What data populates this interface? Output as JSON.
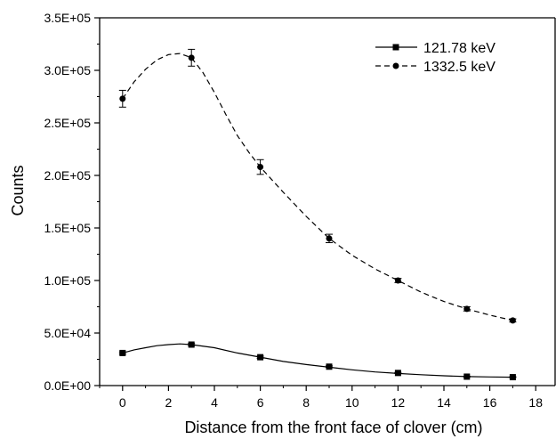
{
  "chart_data": {
    "type": "line",
    "xlabel": "Distance from the front face of clover (cm)",
    "ylabel": "Counts",
    "xlim": [
      -1,
      19
    ],
    "ylim": [
      0,
      350000
    ],
    "x_ticks": [
      0,
      2,
      4,
      6,
      8,
      10,
      12,
      14,
      16,
      18
    ],
    "x_tick_labels": [
      "0",
      "2",
      "4",
      "6",
      "8",
      "10",
      "12",
      "14",
      "16",
      "18"
    ],
    "y_ticks": [
      0,
      50000,
      100000,
      150000,
      200000,
      250000,
      300000,
      350000
    ],
    "y_tick_labels": [
      "0.0E+00",
      "5.0E+04",
      "1.0E+05",
      "1.5E+05",
      "2.0E+05",
      "2.5E+05",
      "3.0E+05",
      "3.5E+05"
    ],
    "legend_position": "top-right",
    "grid": false,
    "series": [
      {
        "name": "121.78 keV",
        "marker": "square",
        "line_style": "solid",
        "color": "#000000",
        "x": [
          0,
          3,
          6,
          9,
          12,
          15,
          17
        ],
        "y": [
          31000,
          39000,
          27000,
          18000,
          12000,
          8500,
          8000
        ],
        "error": [
          1000,
          1000,
          1000,
          700,
          500,
          400,
          400
        ],
        "curve": {
          "x": [
            0,
            0.5,
            1,
            1.5,
            2,
            2.5,
            3,
            4,
            5,
            6,
            7,
            8,
            9,
            10,
            11,
            12,
            13,
            14,
            15,
            16,
            17
          ],
          "y": [
            31000,
            34000,
            36000,
            38000,
            39000,
            39700,
            39000,
            36000,
            31000,
            27000,
            23000,
            20000,
            17500,
            15000,
            13000,
            11500,
            10300,
            9300,
            8600,
            8200,
            8000
          ]
        }
      },
      {
        "name": "1332.5 keV",
        "marker": "circle",
        "line_style": "dashed",
        "color": "#000000",
        "x": [
          0,
          3,
          6,
          9,
          12,
          15,
          17
        ],
        "y": [
          273000,
          312000,
          208000,
          140000,
          100000,
          73000,
          62000
        ],
        "error": [
          8000,
          8000,
          7000,
          4000,
          2000,
          2000,
          1500
        ],
        "curve": {
          "x": [
            0,
            0.5,
            1,
            1.5,
            2,
            2.5,
            3,
            3.5,
            4,
            4.5,
            5,
            5.5,
            6,
            7,
            8,
            9,
            10,
            11,
            12,
            13,
            14,
            15,
            16,
            17
          ],
          "y": [
            273000,
            289000,
            301000,
            310000,
            315000,
            316000,
            312000,
            298000,
            279000,
            258000,
            238000,
            222000,
            208000,
            184000,
            161000,
            140000,
            124000,
            111000,
            100000,
            89000,
            80000,
            73000,
            67000,
            62000
          ]
        }
      }
    ]
  }
}
